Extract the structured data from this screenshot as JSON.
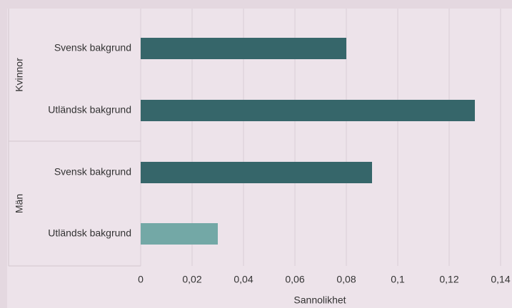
{
  "chart_data": {
    "type": "bar",
    "orientation": "horizontal",
    "xlabel": "Sannolikhet",
    "xlim": [
      0,
      0.14
    ],
    "xticks": [
      0,
      0.02,
      0.04,
      0.06,
      0.08,
      0.1,
      0.12,
      0.14
    ],
    "xtick_labels": [
      "0",
      "0,02",
      "0,04",
      "0,06",
      "0,08",
      "0,1",
      "0,12",
      "0,14"
    ],
    "grid": true,
    "groups": [
      {
        "label": "Kvinnor",
        "bars": [
          {
            "label": "Svensk bakgrund",
            "value": 0.08,
            "color": "#36666a"
          },
          {
            "label": "Utländsk bakgrund",
            "value": 0.13,
            "color": "#36666a"
          }
        ]
      },
      {
        "label": "Män",
        "bars": [
          {
            "label": "Svensk bakgrund",
            "value": 0.09,
            "color": "#36666a"
          },
          {
            "label": "Utländsk bakgrund",
            "value": 0.03,
            "color": "#73a8a6"
          }
        ]
      }
    ]
  }
}
